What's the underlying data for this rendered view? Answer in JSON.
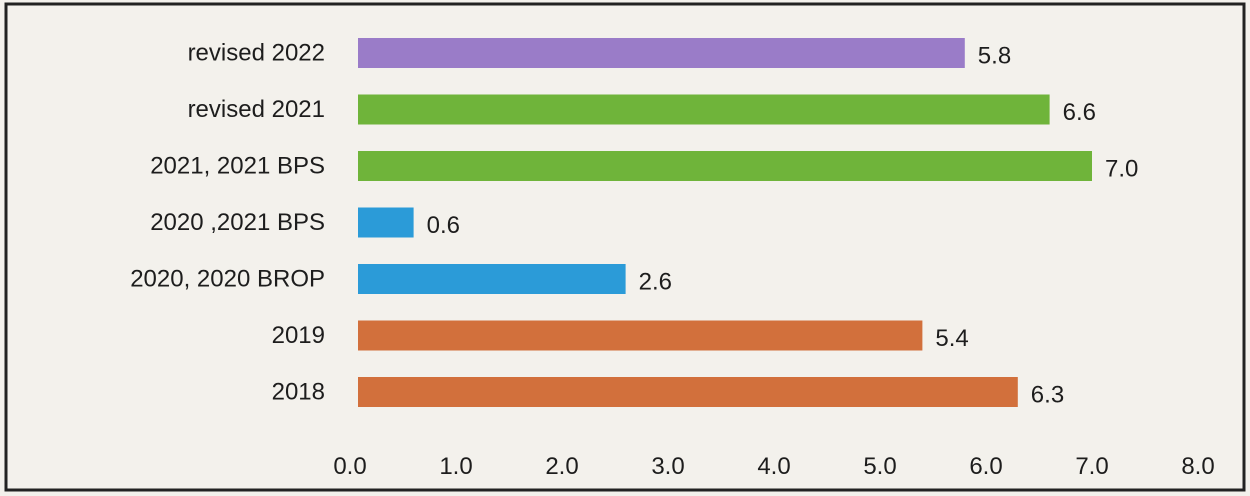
{
  "chart_data": {
    "type": "bar",
    "orientation": "horizontal",
    "categories": [
      "revised 2022",
      "revised 2021",
      "2021,  2021 BPS",
      "2020 ,2021 BPS",
      "2020, 2020 BROP",
      "2019",
      "2018"
    ],
    "values": [
      5.8,
      6.6,
      7.0,
      0.6,
      2.6,
      5.4,
      6.3
    ],
    "value_labels": [
      "5.8",
      "6.6",
      "7.0",
      "0.6",
      "2.6",
      "5.4",
      "6.3"
    ],
    "colors": [
      "#9a7cc8",
      "#6fb43a",
      "#6fb43a",
      "#2b9bd8",
      "#2b9bd8",
      "#d2703c",
      "#d2703c"
    ],
    "xlim": [
      0,
      8
    ],
    "x_ticks": [
      "0.0",
      "1.0",
      "2.0",
      "3.0",
      "4.0",
      "5.0",
      "6.0",
      "7.0",
      "8.0"
    ],
    "title": "",
    "xlabel": "",
    "ylabel": "",
    "grid": false,
    "legend": "none"
  }
}
